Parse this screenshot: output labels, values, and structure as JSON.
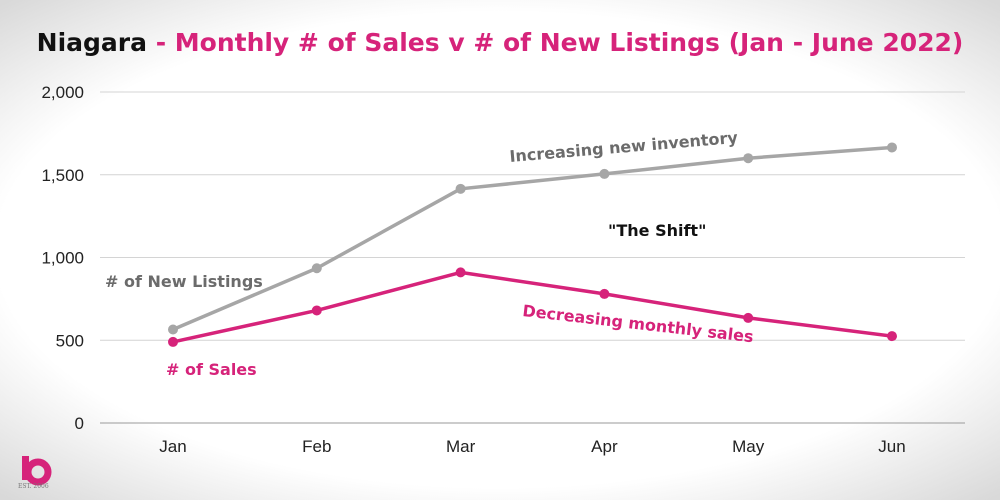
{
  "title": {
    "region": "Niagara",
    "rest": " - Monthly # of Sales v # of New Listings (Jan - June 2022)"
  },
  "colors": {
    "listings": "#a6a6a6",
    "sales": "#d6237a",
    "annotation_gray": "#6b6b6b",
    "grid": "#d4d4d4"
  },
  "chart_data": {
    "type": "line",
    "categories": [
      "Jan",
      "Feb",
      "Mar",
      "Apr",
      "May",
      "Jun"
    ],
    "ylim": [
      0,
      2000
    ],
    "yticks": [
      0,
      500,
      1000,
      1500,
      2000
    ],
    "ytick_labels": [
      "0",
      "500",
      "1,000",
      "1,500",
      "2,000"
    ],
    "grid": true,
    "series": [
      {
        "name": "# of New Listings",
        "color": "#a6a6a6",
        "values": [
          565,
          935,
          1415,
          1505,
          1600,
          1665
        ]
      },
      {
        "name": "# of Sales",
        "color": "#d6237a",
        "values": [
          490,
          680,
          910,
          780,
          635,
          525
        ]
      }
    ],
    "annotations": {
      "listings_label": "# of New Listings",
      "sales_label": "# of Sales",
      "increasing": "Increasing new inventory",
      "decreasing": "Decreasing monthly sales",
      "shift": "\"The Shift\""
    }
  },
  "logo": {
    "icon": "brand-logo-icon",
    "text": "EST. 2006"
  }
}
